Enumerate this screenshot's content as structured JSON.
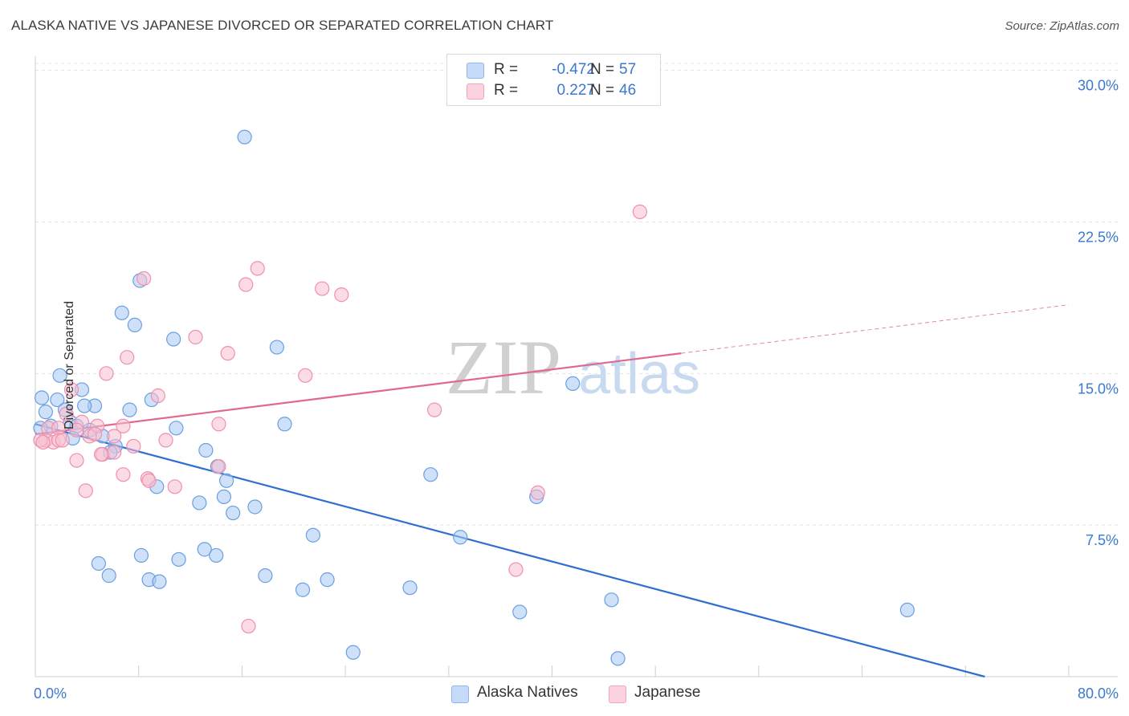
{
  "title": "ALASKA NATIVE VS JAPANESE DIVORCED OR SEPARATED CORRELATION CHART",
  "source": "Source: ZipAtlas.com",
  "watermark": {
    "zip": "ZIP",
    "atlas": "atlas"
  },
  "legend": {
    "rows": [
      {
        "r_label": "R =",
        "r_value": "-0.472",
        "n_label": "N =",
        "n_value": "57",
        "color": "#a8c8f4"
      },
      {
        "r_label": "R =",
        "r_value": "0.227",
        "n_label": "N =",
        "n_value": "46",
        "color": "#f8c0d0"
      }
    ]
  },
  "bottom_legend": [
    {
      "label": "Alaska Natives",
      "color": "#a8c8f4"
    },
    {
      "label": "Japanese",
      "color": "#f8c0d0"
    }
  ],
  "chart_data": {
    "type": "scatter",
    "title": "ALASKA NATIVE VS JAPANESE DIVORCED OR SEPARATED CORRELATION CHART",
    "xlabel": "",
    "ylabel": "Divorced or Separated",
    "xlim": [
      0,
      80
    ],
    "ylim": [
      0,
      30.7
    ],
    "x_tick_labels": [
      "0.0%",
      "80.0%"
    ],
    "y_ticks": [
      7.5,
      15.0,
      22.5,
      30.0
    ],
    "y_tick_labels": [
      "7.5%",
      "15.0%",
      "22.5%",
      "30.0%"
    ],
    "grid": true,
    "legend_position": "top-center",
    "series": [
      {
        "name": "Alaska Natives",
        "color": "#6a9fe0",
        "fill": "#a8c8f4",
        "line_color": "#2e6fd0",
        "trend": {
          "x0": 0,
          "y0": 12.5,
          "x1": 73.5,
          "y1": 0.0,
          "dashed_after": null
        },
        "points": [
          [
            16.2,
            26.7
          ],
          [
            8.1,
            19.6
          ],
          [
            6.7,
            18.0
          ],
          [
            7.7,
            17.4
          ],
          [
            10.7,
            16.7
          ],
          [
            18.7,
            16.3
          ],
          [
            1.9,
            14.9
          ],
          [
            41.6,
            14.5
          ],
          [
            0.5,
            13.8
          ],
          [
            1.7,
            13.7
          ],
          [
            3.6,
            14.2
          ],
          [
            4.6,
            13.4
          ],
          [
            3.8,
            13.4
          ],
          [
            2.3,
            13.2
          ],
          [
            0.8,
            13.1
          ],
          [
            7.3,
            13.2
          ],
          [
            9.0,
            13.7
          ],
          [
            2.7,
            12.6
          ],
          [
            3.2,
            12.4
          ],
          [
            1.2,
            12.4
          ],
          [
            0.4,
            12.3
          ],
          [
            19.3,
            12.5
          ],
          [
            10.9,
            12.3
          ],
          [
            4.2,
            12.2
          ],
          [
            2.9,
            11.8
          ],
          [
            5.2,
            11.9
          ],
          [
            6.2,
            11.4
          ],
          [
            13.2,
            11.2
          ],
          [
            5.8,
            11.1
          ],
          [
            14.1,
            10.4
          ],
          [
            30.6,
            10.0
          ],
          [
            14.8,
            9.7
          ],
          [
            9.4,
            9.4
          ],
          [
            38.8,
            8.9
          ],
          [
            14.6,
            8.9
          ],
          [
            12.7,
            8.6
          ],
          [
            17.0,
            8.4
          ],
          [
            15.3,
            8.1
          ],
          [
            21.5,
            7.0
          ],
          [
            32.9,
            6.9
          ],
          [
            13.1,
            6.3
          ],
          [
            8.2,
            6.0
          ],
          [
            11.1,
            5.8
          ],
          [
            14.0,
            6.0
          ],
          [
            4.9,
            5.6
          ],
          [
            5.7,
            5.0
          ],
          [
            17.8,
            5.0
          ],
          [
            8.8,
            4.8
          ],
          [
            9.6,
            4.7
          ],
          [
            22.6,
            4.8
          ],
          [
            20.7,
            4.3
          ],
          [
            29.0,
            4.4
          ],
          [
            44.6,
            3.8
          ],
          [
            37.5,
            3.2
          ],
          [
            67.5,
            3.3
          ],
          [
            24.6,
            1.2
          ],
          [
            45.1,
            0.9
          ]
        ]
      },
      {
        "name": "Japanese",
        "color": "#f08fae",
        "fill": "#f8c0d0",
        "line_color": "#e06890",
        "trend": {
          "x0": 0,
          "y0": 12.0,
          "x1": 80.0,
          "y1": 18.4,
          "solid_until": 50.0
        },
        "points": [
          [
            46.8,
            23.0
          ],
          [
            17.2,
            20.2
          ],
          [
            16.3,
            19.4
          ],
          [
            8.4,
            19.7
          ],
          [
            22.2,
            19.2
          ],
          [
            23.7,
            18.9
          ],
          [
            12.4,
            16.8
          ],
          [
            14.9,
            16.0
          ],
          [
            7.1,
            15.8
          ],
          [
            5.5,
            15.0
          ],
          [
            20.9,
            14.9
          ],
          [
            2.8,
            14.2
          ],
          [
            9.5,
            13.9
          ],
          [
            30.9,
            13.2
          ],
          [
            2.4,
            13.0
          ],
          [
            3.6,
            12.6
          ],
          [
            1.0,
            12.3
          ],
          [
            4.8,
            12.4
          ],
          [
            1.8,
            12.3
          ],
          [
            6.8,
            12.4
          ],
          [
            14.2,
            12.5
          ],
          [
            3.2,
            12.2
          ],
          [
            4.2,
            11.9
          ],
          [
            6.1,
            11.9
          ],
          [
            0.8,
            11.7
          ],
          [
            1.4,
            11.6
          ],
          [
            0.4,
            11.7
          ],
          [
            0.6,
            11.6
          ],
          [
            1.8,
            11.7
          ],
          [
            7.6,
            11.4
          ],
          [
            10.1,
            11.7
          ],
          [
            5.2,
            11.0
          ],
          [
            6.1,
            11.1
          ],
          [
            3.2,
            10.7
          ],
          [
            14.2,
            10.4
          ],
          [
            6.8,
            10.0
          ],
          [
            8.7,
            9.8
          ],
          [
            8.8,
            9.7
          ],
          [
            10.8,
            9.4
          ],
          [
            3.9,
            9.2
          ],
          [
            38.9,
            9.1
          ],
          [
            37.2,
            5.3
          ],
          [
            16.5,
            2.5
          ],
          [
            5.1,
            11.0
          ],
          [
            2.1,
            11.7
          ],
          [
            4.6,
            12.0
          ]
        ]
      }
    ]
  }
}
